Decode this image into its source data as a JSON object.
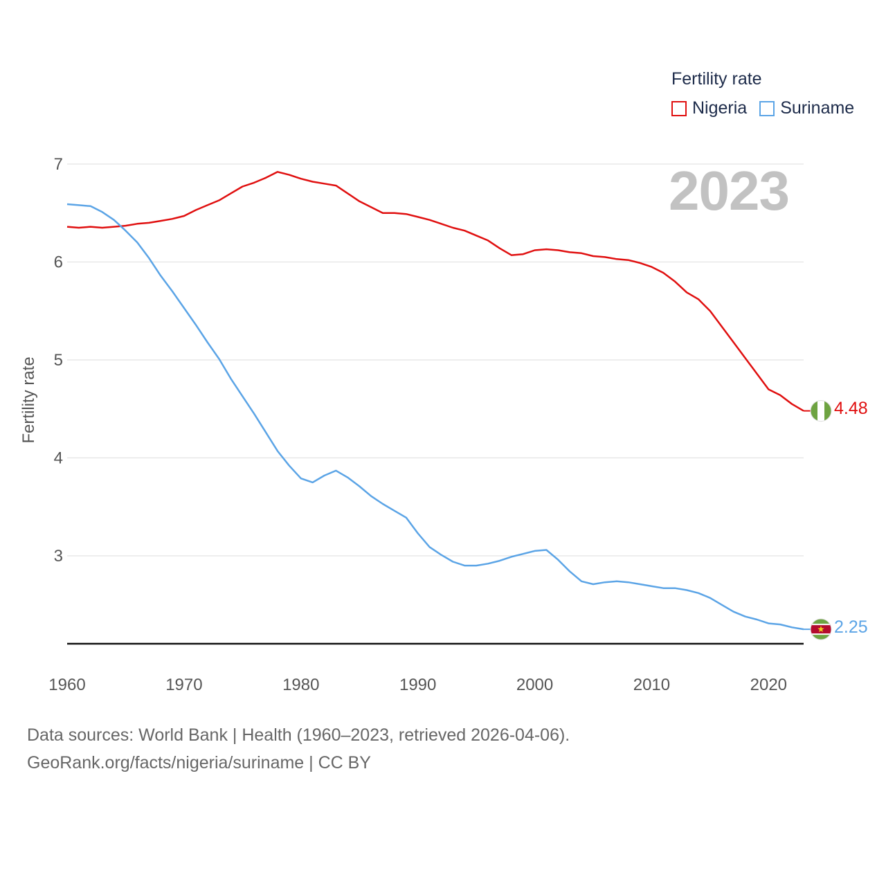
{
  "legend": {
    "title": "Fertility rate",
    "items": [
      {
        "name": "Nigeria",
        "color": "#e00f0f"
      },
      {
        "name": "Suriname",
        "color": "#5ba4e6"
      }
    ]
  },
  "year_watermark": "2023",
  "footer": {
    "line1": "Data sources: World Bank | Health (1960–2023, retrieved 2026-04-06).",
    "line2": "GeoRank.org/facts/nigeria/suriname | CC BY"
  },
  "end_labels": {
    "nigeria": "4.48",
    "suriname": "2.25"
  },
  "chart_data": {
    "type": "line",
    "title": "Fertility rate",
    "xlabel": "",
    "ylabel": "Fertility rate",
    "xlim": [
      1960,
      2023
    ],
    "ylim": [
      2.1,
      7.0
    ],
    "x_ticks": [
      1960,
      1970,
      1980,
      1990,
      2000,
      2010,
      2020
    ],
    "y_ticks": [
      3,
      4,
      5,
      6,
      7
    ],
    "grid": true,
    "legend": "top-right",
    "x": [
      1960,
      1961,
      1962,
      1963,
      1964,
      1965,
      1966,
      1967,
      1968,
      1969,
      1970,
      1971,
      1972,
      1973,
      1974,
      1975,
      1976,
      1977,
      1978,
      1979,
      1980,
      1981,
      1982,
      1983,
      1984,
      1985,
      1986,
      1987,
      1988,
      1989,
      1990,
      1991,
      1992,
      1993,
      1994,
      1995,
      1996,
      1997,
      1998,
      1999,
      2000,
      2001,
      2002,
      2003,
      2004,
      2005,
      2006,
      2007,
      2008,
      2009,
      2010,
      2011,
      2012,
      2013,
      2014,
      2015,
      2016,
      2017,
      2018,
      2019,
      2020,
      2021,
      2022,
      2023
    ],
    "series": [
      {
        "name": "Nigeria",
        "color": "#e00f0f",
        "values": [
          6.36,
          6.35,
          6.36,
          6.35,
          6.36,
          6.37,
          6.39,
          6.4,
          6.42,
          6.44,
          6.47,
          6.53,
          6.58,
          6.63,
          6.7,
          6.77,
          6.81,
          6.86,
          6.92,
          6.89,
          6.85,
          6.82,
          6.8,
          6.78,
          6.7,
          6.62,
          6.56,
          6.5,
          6.5,
          6.49,
          6.46,
          6.43,
          6.39,
          6.35,
          6.32,
          6.27,
          6.22,
          6.14,
          6.07,
          6.08,
          6.12,
          6.13,
          6.12,
          6.1,
          6.09,
          6.06,
          6.05,
          6.03,
          6.02,
          5.99,
          5.95,
          5.89,
          5.8,
          5.69,
          5.62,
          5.5,
          5.34,
          5.18,
          5.02,
          4.86,
          4.7,
          4.64,
          4.55,
          4.48
        ]
      },
      {
        "name": "Suriname",
        "color": "#5ba4e6",
        "values": [
          6.59,
          6.58,
          6.57,
          6.51,
          6.43,
          6.32,
          6.2,
          6.04,
          5.86,
          5.7,
          5.53,
          5.36,
          5.18,
          5.01,
          4.81,
          4.63,
          4.45,
          4.26,
          4.07,
          3.92,
          3.79,
          3.75,
          3.82,
          3.87,
          3.8,
          3.71,
          3.61,
          3.53,
          3.46,
          3.39,
          3.23,
          3.09,
          3.01,
          2.94,
          2.9,
          2.9,
          2.92,
          2.95,
          2.99,
          3.02,
          3.05,
          3.06,
          2.96,
          2.84,
          2.74,
          2.71,
          2.73,
          2.74,
          2.73,
          2.71,
          2.69,
          2.67,
          2.67,
          2.65,
          2.62,
          2.57,
          2.5,
          2.43,
          2.38,
          2.35,
          2.31,
          2.3,
          2.27,
          2.25
        ]
      }
    ]
  }
}
